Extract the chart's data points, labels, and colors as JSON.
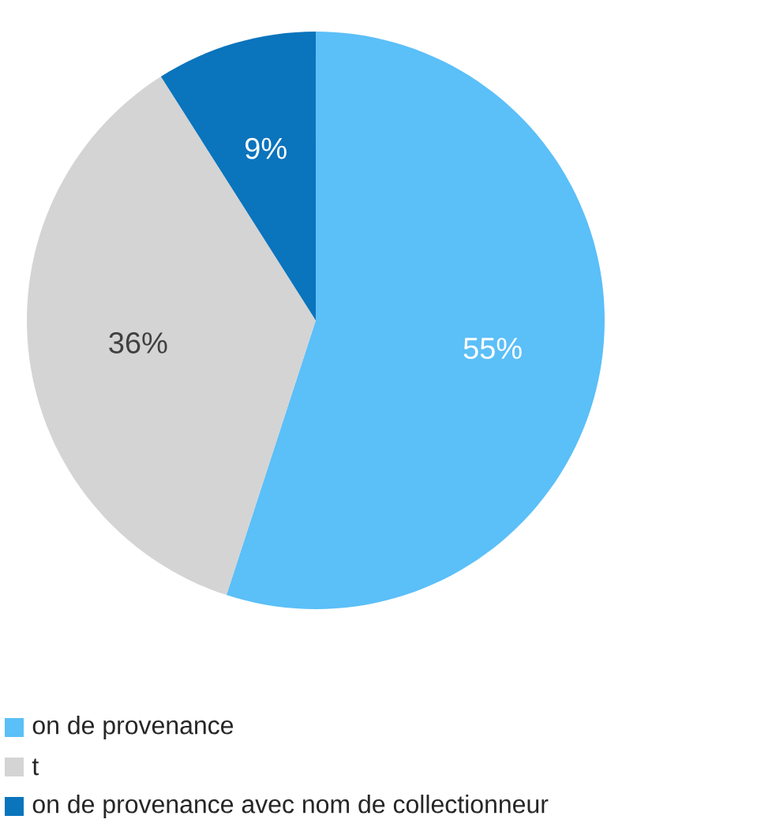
{
  "chart_data": {
    "type": "pie",
    "categories": [
      "on de provenance",
      "t",
      "on de provenance avec nom de collectionneur"
    ],
    "values": [
      55,
      36,
      9
    ],
    "colors": [
      "#5bbff8",
      "#d4d4d4",
      "#0a74bc"
    ],
    "value_labels": [
      "55%",
      "36%",
      "9%"
    ],
    "legend": "bottom left"
  }
}
